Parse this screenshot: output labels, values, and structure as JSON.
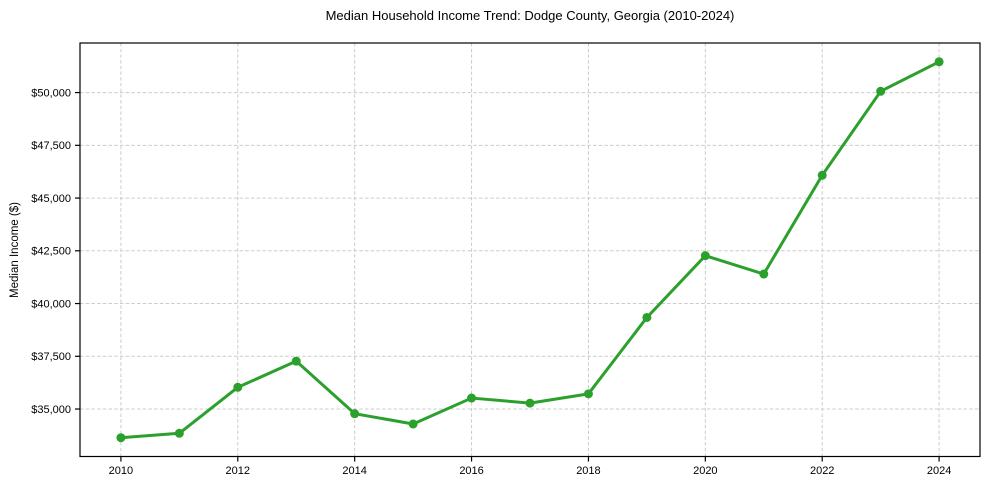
{
  "chart_data": {
    "type": "line",
    "title": "Median Household Income Trend: Dodge County, Georgia (2010-2024)",
    "xlabel": "",
    "ylabel": "Median Income ($)",
    "x": [
      2010,
      2011,
      2012,
      2013,
      2014,
      2015,
      2016,
      2017,
      2018,
      2019,
      2020,
      2021,
      2022,
      2023,
      2024
    ],
    "series": [
      {
        "name": "Median Household Income",
        "values": [
          33640,
          33850,
          36030,
          37270,
          34780,
          34290,
          35520,
          35280,
          35720,
          39340,
          42270,
          41400,
          46080,
          50060,
          51460
        ]
      }
    ],
    "xlim": [
      2009.3,
      2024.7
    ],
    "ylim": [
      32750,
      52350
    ],
    "x_ticks": [
      {
        "value": 2010,
        "label": "2010"
      },
      {
        "value": 2012,
        "label": "2012"
      },
      {
        "value": 2014,
        "label": "2014"
      },
      {
        "value": 2016,
        "label": "2016"
      },
      {
        "value": 2018,
        "label": "2018"
      },
      {
        "value": 2020,
        "label": "2020"
      },
      {
        "value": 2022,
        "label": "2022"
      },
      {
        "value": 2024,
        "label": "2024"
      }
    ],
    "y_ticks": [
      {
        "value": 35000,
        "label": "$35,000"
      },
      {
        "value": 37500,
        "label": "$37,500"
      },
      {
        "value": 40000,
        "label": "$40,000"
      },
      {
        "value": 42500,
        "label": "$42,500"
      },
      {
        "value": 45000,
        "label": "$45,000"
      },
      {
        "value": 47500,
        "label": "$47,500"
      },
      {
        "value": 50000,
        "label": "$50,000"
      }
    ],
    "grid": true,
    "legend": "none",
    "line_color": "#2ca02c",
    "marker": "circle",
    "marker_radius": 4.5,
    "line_width": 3,
    "grid_color": "#cccccc",
    "axis_color": "#000000",
    "text_color": "#000000",
    "background": "#ffffff"
  }
}
